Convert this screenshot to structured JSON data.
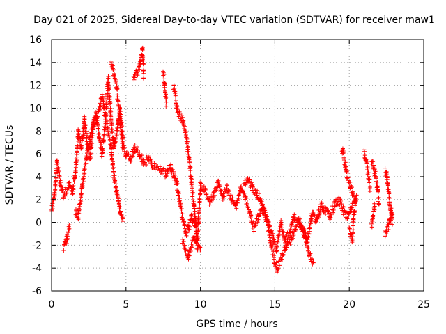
{
  "chart_data": {
    "type": "scatter",
    "title": "Day 021 of 2025, Sidereal Day-to-day VTEC variation (SDTVAR) for receiver maw1",
    "xlabel": "GPS time / hours",
    "ylabel": "SDTVAR / TECUs",
    "xlim": [
      0,
      25
    ],
    "ylim": [
      -6,
      16
    ],
    "xticks": [
      0,
      5,
      10,
      15,
      20,
      25
    ],
    "yticks": [
      -6,
      -4,
      -2,
      0,
      2,
      4,
      6,
      8,
      10,
      12,
      14,
      16
    ],
    "grid": true,
    "marker": "+",
    "color": "#ff0000",
    "series": [
      {
        "name": "SDTVAR",
        "segments": [
          {
            "x": [
              0.0,
              0.2,
              0.35,
              0.5,
              0.65,
              0.8,
              1.0,
              1.2,
              1.4,
              1.6,
              1.8,
              2.0,
              2.2,
              2.4,
              2.6,
              2.8,
              3.0,
              3.2,
              3.4,
              3.6,
              3.8,
              4.0,
              4.2,
              4.4,
              4.6,
              4.8,
              5.0,
              5.3,
              5.6,
              5.9,
              6.2,
              6.5,
              6.8,
              7.1,
              7.4,
              7.7,
              8.0,
              8.2,
              8.4,
              8.6,
              8.8,
              9.0,
              9.2,
              9.4,
              9.6,
              9.8,
              10.0,
              10.3,
              10.6,
              10.9,
              11.2,
              11.5,
              11.8,
              12.1,
              12.4,
              12.7,
              13.0,
              13.3,
              13.6,
              13.9,
              14.2,
              14.5,
              14.8,
              15.1,
              15.4,
              15.7,
              16.0,
              16.3,
              16.6,
              16.9,
              17.2,
              17.5,
              17.8,
              18.1,
              18.4,
              18.7,
              19.0,
              19.3,
              19.6,
              19.9,
              20.2
            ],
            "y": [
              1,
              2.5,
              5.2,
              4.2,
              3.0,
              2.2,
              2.8,
              3.2,
              2.6,
              4.2,
              8.0,
              6.5,
              9.0,
              7.0,
              5.5,
              8.8,
              9.5,
              7.5,
              6.0,
              8.5,
              12.5,
              9.0,
              6.5,
              8.0,
              10.0,
              7.0,
              6.0,
              5.5,
              6.5,
              6.0,
              5.2,
              5.5,
              5.0,
              4.8,
              4.5,
              4.2,
              5.0,
              4.0,
              3.5,
              2.0,
              0.5,
              -1.0,
              -0.5,
              0.5,
              0.0,
              -1.5,
              3.2,
              2.8,
              1.8,
              2.5,
              3.5,
              2.2,
              3.0,
              2.0,
              1.5,
              3.0,
              2.2,
              1.0,
              -0.5,
              0.5,
              1.2,
              0.0,
              -1.0,
              -2.5,
              0.0,
              -1.5,
              -1.0,
              0.5,
              0.2,
              -0.5,
              -1.5,
              0.8,
              0.0,
              1.5,
              1.0,
              0.5,
              1.5,
              2.0,
              1.0,
              0.5,
              1.5
            ]
          },
          {
            "x": [
              0.8,
              0.9,
              1.0,
              1.1,
              1.2
            ],
            "y": [
              -2.2,
              -1.9,
              -1.6,
              -1.0,
              -0.3
            ]
          },
          {
            "x": [
              1.6,
              1.8,
              2.0,
              2.2,
              2.4,
              2.6,
              2.8,
              3.0,
              3.2,
              3.4,
              3.6,
              3.8,
              4.0,
              4.2,
              4.4,
              4.6,
              4.8
            ],
            "y": [
              1.0,
              0.5,
              2.5,
              4.5,
              6.0,
              7.5,
              8.5,
              9.0,
              10.0,
              11.0,
              9.5,
              8.0,
              6.5,
              4.0,
              2.5,
              1.0,
              0.0
            ]
          },
          {
            "x": [
              4.0,
              4.2,
              4.4,
              4.6,
              4.8
            ],
            "y": [
              13.8,
              13.0,
              11.5,
              9.0,
              6.5
            ]
          },
          {
            "x": [
              5.5,
              5.7,
              5.9,
              6.0,
              6.1,
              6.2
            ],
            "y": [
              12.5,
              13.0,
              13.5,
              14.5,
              15.2,
              12.8
            ]
          },
          {
            "x": [
              7.5,
              7.6,
              7.7
            ],
            "y": [
              13.3,
              12.0,
              10.5
            ]
          },
          {
            "x": [
              8.2,
              8.5,
              8.8,
              9.0,
              9.2,
              9.4,
              9.6,
              9.8
            ],
            "y": [
              12.0,
              9.5,
              9.0,
              8.0,
              6.0,
              3.5,
              1.0,
              -1.5
            ]
          },
          {
            "x": [
              8.8,
              9.0,
              9.2,
              9.4,
              9.6,
              9.8,
              10.0
            ],
            "y": [
              -1.5,
              -2.5,
              -3.0,
              -2.0,
              -1.5,
              -2.2,
              -2.6
            ]
          },
          {
            "x": [
              12.9,
              13.2,
              13.5,
              13.8,
              14.1,
              14.4,
              14.7,
              15.0,
              15.2
            ],
            "y": [
              3.5,
              3.8,
              3.0,
              2.5,
              1.8,
              0.5,
              -1.5,
              -3.5,
              -4.2
            ]
          },
          {
            "x": [
              15.2,
              15.5,
              15.8,
              16.1,
              16.4,
              16.7,
              17.0,
              17.3,
              17.6
            ],
            "y": [
              -4.0,
              -3.0,
              -2.0,
              -1.5,
              -0.5,
              0.0,
              -1.2,
              -2.8,
              -3.5
            ]
          },
          {
            "x": [
              19.5,
              19.8,
              20.1,
              20.4
            ],
            "y": [
              6.5,
              4.5,
              3.0,
              1.8
            ]
          },
          {
            "x": [
              20.0,
              20.1,
              20.2,
              20.3,
              20.4,
              20.5
            ],
            "y": [
              -0.5,
              -1.0,
              -1.5,
              0.5,
              1.5,
              2.5
            ]
          },
          {
            "x": [
              21.0,
              21.1,
              21.2,
              21.3,
              21.4
            ],
            "y": [
              6.3,
              5.5,
              5.0,
              4.0,
              3.0
            ]
          },
          {
            "x": [
              21.5,
              21.7,
              21.9,
              22.0
            ],
            "y": [
              5.5,
              4.5,
              3.0,
              1.5
            ]
          },
          {
            "x": [
              21.5,
              21.6,
              21.7
            ],
            "y": [
              -0.2,
              0.5,
              1.5
            ]
          },
          {
            "x": [
              22.4,
              22.5,
              22.6,
              22.7,
              22.8,
              22.9
            ],
            "y": [
              4.5,
              4.2,
              3.0,
              2.0,
              1.0,
              0.0
            ]
          },
          {
            "x": [
              22.4,
              22.5,
              22.6,
              22.7,
              22.8,
              22.9
            ],
            "y": [
              -1.0,
              -0.8,
              -0.5,
              0.0,
              0.5,
              1.0
            ]
          }
        ]
      }
    ]
  }
}
